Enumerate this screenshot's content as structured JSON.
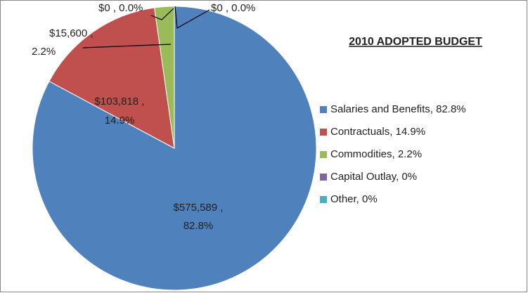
{
  "chart_data": {
    "type": "pie",
    "title": "2010 ADOPTED BUDGET",
    "categories": [
      "Salaries and Benefits, 82.8%",
      "Contractuals, 14.9%",
      "Commodities, 2.2%",
      "Capital Outlay, 0%",
      "Other, 0%"
    ],
    "values": [
      575589,
      103818,
      15600,
      0,
      0
    ],
    "value_labels": [
      [
        "$575,589 ,",
        "82.8%"
      ],
      [
        "$103,818 ,",
        "14.9%"
      ],
      [
        "$15,600 ,",
        "2.2%"
      ],
      [
        "$0 , 0.0%"
      ],
      [
        "$0 , 0.0%"
      ]
    ],
    "colors": [
      "#4f81bd",
      "#c0504d",
      "#9bbb59",
      "#8064a2",
      "#4bacc6"
    ],
    "legend": "right"
  }
}
